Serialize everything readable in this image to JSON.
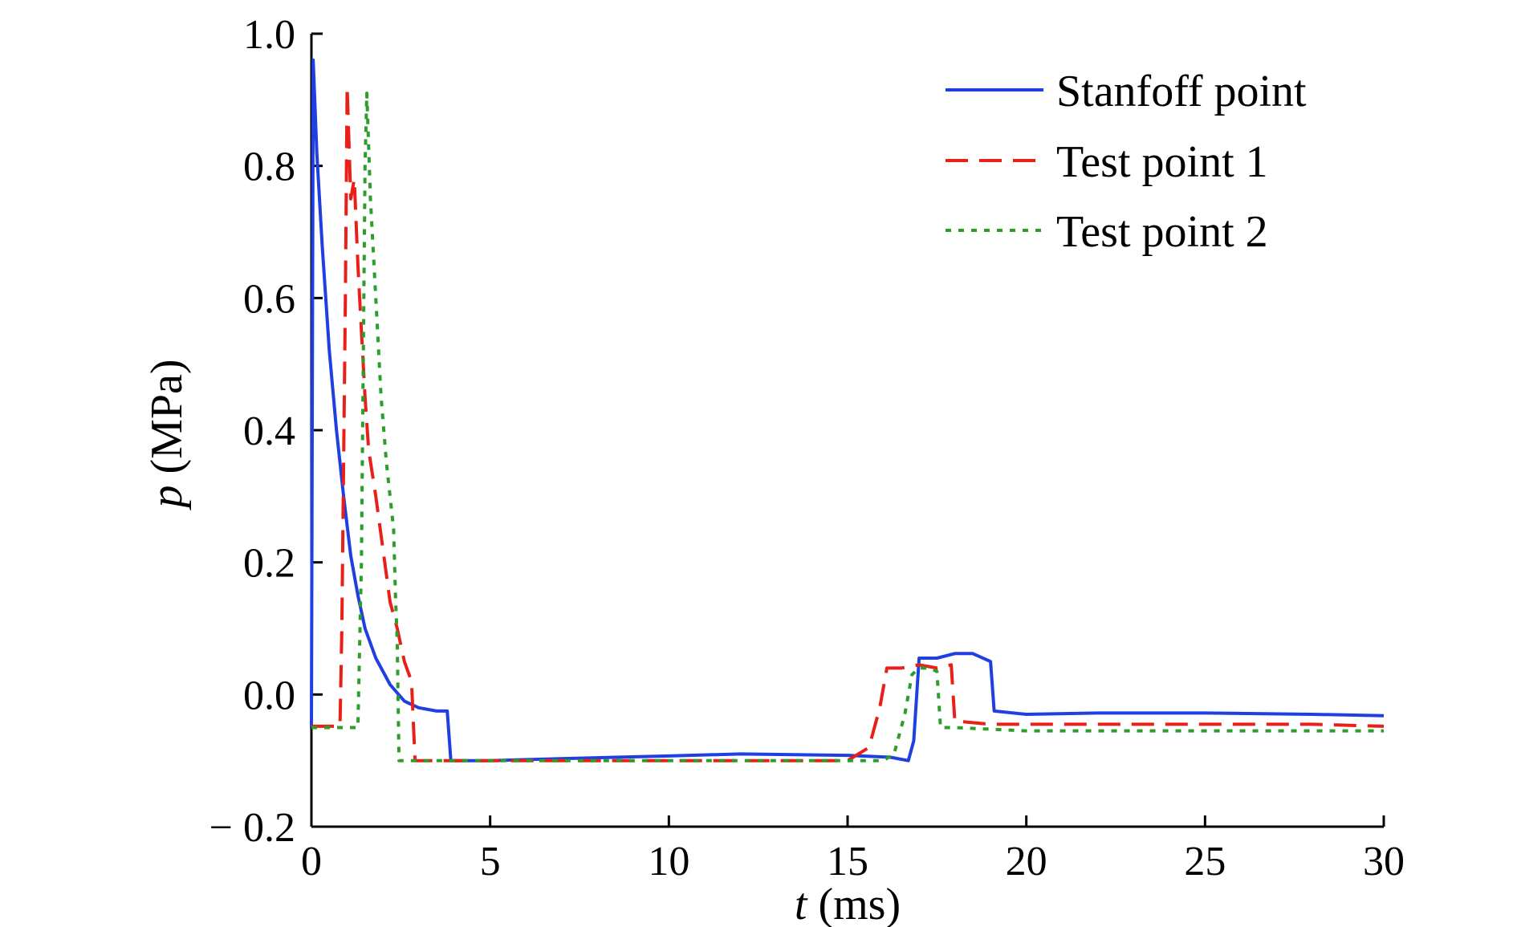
{
  "chart_data": {
    "type": "line",
    "xlabel": {
      "var": "t",
      "unit": " (ms)"
    },
    "ylabel": {
      "var": "p",
      "unit": " (MPa)"
    },
    "xlim": [
      0,
      30
    ],
    "ylim": [
      -0.2,
      1.0
    ],
    "xticks": [
      0,
      5,
      10,
      15,
      20,
      25,
      30
    ],
    "xtick_labels": [
      "0",
      "5",
      "10",
      "15",
      "20",
      "25",
      "30"
    ],
    "yticks": [
      -0.2,
      0.0,
      0.2,
      0.4,
      0.6,
      0.8,
      1.0
    ],
    "ytick_labels": [
      "− 0.2",
      "0.0",
      "0.2",
      "0.4",
      "0.6",
      "0.8",
      "1.0"
    ],
    "grid": false,
    "legend_position": "top-right",
    "series": [
      {
        "name": "Stanfoff point",
        "color": "#1f3fe0",
        "style": "solid",
        "points": [
          [
            0,
            -0.05
          ],
          [
            0.05,
            0.96
          ],
          [
            0.15,
            0.82
          ],
          [
            0.3,
            0.68
          ],
          [
            0.5,
            0.52
          ],
          [
            0.7,
            0.4
          ],
          [
            0.9,
            0.3
          ],
          [
            1.1,
            0.21
          ],
          [
            1.3,
            0.15
          ],
          [
            1.5,
            0.1
          ],
          [
            1.8,
            0.055
          ],
          [
            2.2,
            0.015
          ],
          [
            2.6,
            -0.01
          ],
          [
            3.0,
            -0.02
          ],
          [
            3.5,
            -0.025
          ],
          [
            3.8,
            -0.025
          ],
          [
            3.9,
            -0.1
          ],
          [
            5,
            -0.1
          ],
          [
            7,
            -0.097
          ],
          [
            10,
            -0.093
          ],
          [
            12,
            -0.09
          ],
          [
            15,
            -0.092
          ],
          [
            16.2,
            -0.095
          ],
          [
            16.7,
            -0.1
          ],
          [
            16.85,
            -0.07
          ],
          [
            17.0,
            0.055
          ],
          [
            17.5,
            0.055
          ],
          [
            18.0,
            0.062
          ],
          [
            18.5,
            0.062
          ],
          [
            19.0,
            0.05
          ],
          [
            19.1,
            -0.025
          ],
          [
            20,
            -0.03
          ],
          [
            22,
            -0.028
          ],
          [
            25,
            -0.028
          ],
          [
            28,
            -0.03
          ],
          [
            30,
            -0.032
          ]
        ]
      },
      {
        "name": "Test point 1",
        "color": "#e8201a",
        "style": "dashed",
        "points": [
          [
            0,
            -0.048
          ],
          [
            0.8,
            -0.048
          ],
          [
            0.85,
            0.1
          ],
          [
            0.95,
            0.6
          ],
          [
            1.0,
            0.92
          ],
          [
            1.1,
            0.75
          ],
          [
            1.2,
            0.78
          ],
          [
            1.3,
            0.65
          ],
          [
            1.4,
            0.55
          ],
          [
            1.5,
            0.45
          ],
          [
            1.6,
            0.37
          ],
          [
            1.8,
            0.3
          ],
          [
            2.0,
            0.22
          ],
          [
            2.2,
            0.14
          ],
          [
            2.4,
            0.1
          ],
          [
            2.6,
            0.05
          ],
          [
            2.8,
            0.02
          ],
          [
            2.9,
            -0.1
          ],
          [
            5,
            -0.1
          ],
          [
            10,
            -0.1
          ],
          [
            15,
            -0.1
          ],
          [
            15.6,
            -0.08
          ],
          [
            15.9,
            -0.02
          ],
          [
            16.1,
            0.04
          ],
          [
            16.5,
            0.04
          ],
          [
            17.0,
            0.045
          ],
          [
            17.5,
            0.04
          ],
          [
            17.9,
            0.045
          ],
          [
            18.0,
            -0.04
          ],
          [
            19,
            -0.045
          ],
          [
            20,
            -0.045
          ],
          [
            22,
            -0.045
          ],
          [
            25,
            -0.045
          ],
          [
            28,
            -0.045
          ],
          [
            30,
            -0.048
          ]
        ]
      },
      {
        "name": "Test point 2",
        "color": "#2e9e2a",
        "style": "dotted",
        "points": [
          [
            0,
            -0.05
          ],
          [
            1.3,
            -0.05
          ],
          [
            1.4,
            0.2
          ],
          [
            1.5,
            0.8
          ],
          [
            1.55,
            0.91
          ],
          [
            1.65,
            0.75
          ],
          [
            1.8,
            0.6
          ],
          [
            1.95,
            0.45
          ],
          [
            2.1,
            0.35
          ],
          [
            2.3,
            0.25
          ],
          [
            2.35,
            0.15
          ],
          [
            2.4,
            0.08
          ],
          [
            2.45,
            -0.1
          ],
          [
            5,
            -0.1
          ],
          [
            10,
            -0.1
          ],
          [
            15,
            -0.1
          ],
          [
            16.0,
            -0.1
          ],
          [
            16.3,
            -0.09
          ],
          [
            16.6,
            -0.03
          ],
          [
            16.8,
            0.03
          ],
          [
            17.0,
            0.04
          ],
          [
            17.3,
            0.04
          ],
          [
            17.5,
            0.035
          ],
          [
            17.6,
            -0.05
          ],
          [
            18,
            -0.05
          ],
          [
            20,
            -0.055
          ],
          [
            22,
            -0.055
          ],
          [
            25,
            -0.055
          ],
          [
            28,
            -0.055
          ],
          [
            30,
            -0.055
          ]
        ]
      }
    ]
  }
}
